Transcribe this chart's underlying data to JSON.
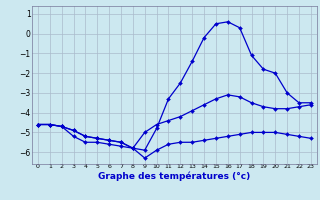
{
  "xlabel": "Graphe des températures (°c)",
  "bg_color": "#cce8f0",
  "grid_color": "#aabbcc",
  "line_color": "#0000cc",
  "line1": {
    "x": [
      0,
      1,
      2,
      3,
      4,
      5,
      6,
      7,
      8,
      9,
      10,
      11,
      12,
      13,
      14,
      15,
      16,
      17,
      18,
      19,
      20,
      21,
      22,
      23
    ],
    "y": [
      -4.6,
      -4.6,
      -4.7,
      -4.9,
      -5.2,
      -5.3,
      -5.4,
      -5.5,
      -5.8,
      -5.9,
      -4.8,
      -3.3,
      -2.5,
      -1.4,
      -0.2,
      0.5,
      0.6,
      0.3,
      -1.1,
      -1.8,
      -2.0,
      -3.0,
      -3.5,
      -3.5
    ]
  },
  "line2": {
    "x": [
      0,
      1,
      2,
      3,
      4,
      5,
      6,
      7,
      8,
      9,
      10,
      11,
      12,
      13,
      14,
      15,
      16,
      17,
      18,
      19,
      20,
      21,
      22,
      23
    ],
    "y": [
      -4.6,
      -4.6,
      -4.7,
      -4.9,
      -5.2,
      -5.3,
      -5.4,
      -5.5,
      -5.8,
      -5.0,
      -4.6,
      -4.4,
      -4.2,
      -3.9,
      -3.6,
      -3.3,
      -3.1,
      -3.2,
      -3.5,
      -3.7,
      -3.8,
      -3.8,
      -3.7,
      -3.6
    ]
  },
  "line3": {
    "x": [
      0,
      1,
      2,
      3,
      4,
      5,
      6,
      7,
      8,
      9,
      10,
      11,
      12,
      13,
      14,
      15,
      16,
      17,
      18,
      19,
      20,
      21,
      22,
      23
    ],
    "y": [
      -4.6,
      -4.6,
      -4.7,
      -5.2,
      -5.5,
      -5.5,
      -5.6,
      -5.7,
      -5.8,
      -6.3,
      -5.9,
      -5.6,
      -5.5,
      -5.5,
      -5.4,
      -5.3,
      -5.2,
      -5.1,
      -5.0,
      -5.0,
      -5.0,
      -5.1,
      -5.2,
      -5.3
    ]
  },
  "xlim": [
    -0.5,
    23.5
  ],
  "ylim": [
    -6.6,
    1.4
  ],
  "yticks": [
    1,
    0,
    -1,
    -2,
    -3,
    -4,
    -5,
    -6
  ],
  "xticks": [
    0,
    1,
    2,
    3,
    4,
    5,
    6,
    7,
    8,
    9,
    10,
    11,
    12,
    13,
    14,
    15,
    16,
    17,
    18,
    19,
    20,
    21,
    22,
    23
  ]
}
